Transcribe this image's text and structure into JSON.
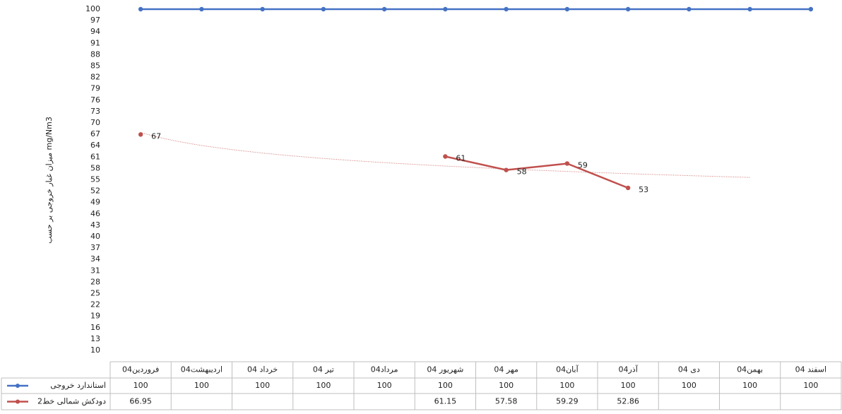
{
  "chart_data": {
    "type": "line",
    "y_label": "میزان غبار خروجی بر حسب mg/Nm3",
    "categories": [
      "فروردین04",
      "اردیبهشت04",
      "خرداد 04",
      "تیر 04",
      "مرداد04",
      "شهریور 04",
      "مهر 04",
      "آبان04",
      "آذر04",
      "دی 04",
      "بهمن04",
      "اسفند 04"
    ],
    "series": [
      {
        "name": "استاندارد خروجی",
        "color": "#4472c4",
        "values": [
          100,
          100,
          100,
          100,
          100,
          100,
          100,
          100,
          100,
          100,
          100,
          100
        ]
      },
      {
        "name": "دودکش شمالی خط2",
        "color": "#c0504d",
        "values": [
          66.95,
          null,
          null,
          null,
          null,
          61.15,
          57.58,
          59.29,
          52.86,
          null,
          null,
          null
        ],
        "value_labels": [
          "67",
          null,
          null,
          null,
          null,
          "61",
          "58",
          "59",
          "53",
          null,
          null,
          null
        ],
        "trendline": {
          "type": "logarithmic",
          "forward": 2
        }
      }
    ],
    "ylim": [
      10,
      100
    ],
    "yticks": [
      10,
      13,
      16,
      19,
      22,
      25,
      28,
      31,
      34,
      37,
      40,
      43,
      46,
      49,
      52,
      55,
      58,
      61,
      64,
      67,
      70,
      73,
      76,
      79,
      82,
      85,
      88,
      91,
      94,
      97,
      100
    ],
    "grid": false,
    "data_table": true
  }
}
